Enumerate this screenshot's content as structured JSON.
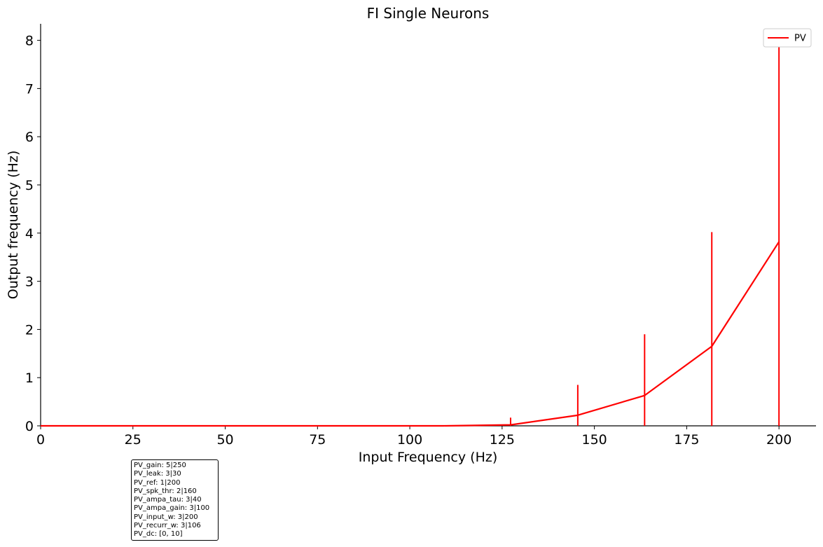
{
  "chart_data": {
    "type": "line",
    "title": "FI Single Neurons",
    "xlabel": "Input Frequency (Hz)",
    "ylabel": "Output frequency (Hz)",
    "xlim": [
      0,
      210
    ],
    "ylim": [
      0,
      8.35
    ],
    "x_ticks": [
      0,
      25,
      50,
      75,
      100,
      125,
      150,
      175,
      200
    ],
    "y_ticks": [
      0,
      1,
      2,
      3,
      4,
      5,
      6,
      7,
      8
    ],
    "grid": false,
    "legend_position": "top-right",
    "series": [
      {
        "name": "PV",
        "color": "#ff0000",
        "x": [
          0,
          18.2,
          36.4,
          54.5,
          72.7,
          90.9,
          109.1,
          127.3,
          145.5,
          163.6,
          181.8,
          200
        ],
        "y": [
          0,
          0,
          0,
          0,
          0,
          0,
          0,
          0.02,
          0.22,
          0.63,
          1.65,
          3.82
        ],
        "error_upper": [
          0,
          0,
          0,
          0,
          0,
          0,
          0,
          0.17,
          0.85,
          1.9,
          4.02,
          7.87
        ],
        "error_lower": [
          0,
          0,
          0,
          0,
          0,
          0,
          0,
          0,
          0,
          0,
          0,
          0
        ]
      }
    ]
  },
  "params_box": {
    "lines": [
      "PV_gain: 5|250",
      "PV_leak: 3|30",
      "PV_ref: 1|200",
      "PV_spk_thr: 2|160",
      "PV_ampa_tau: 3|40",
      "PV_ampa_gain: 3|100",
      "PV_input_w: 3|200",
      "PV_recurr_w: 3|106",
      "PV_dc: [0, 10]"
    ]
  }
}
